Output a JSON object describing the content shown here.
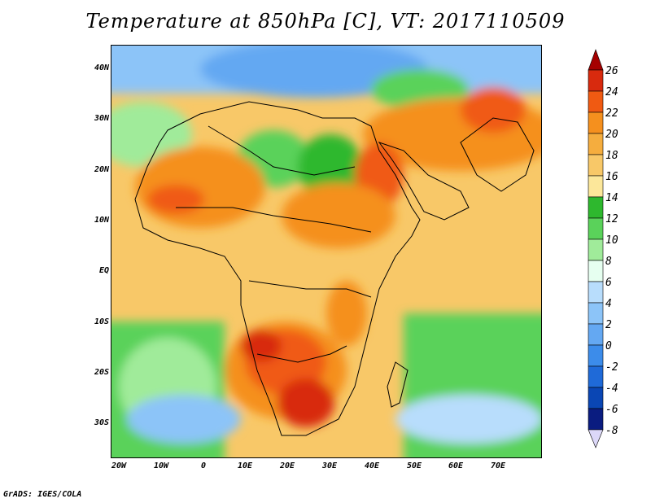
{
  "title": "Temperature at 850hPa [C], VT: 2017110509",
  "credit": "GrADS: IGES/COLA",
  "lat_labels": [
    "40N",
    "30N",
    "20N",
    "10N",
    "EQ",
    "10S",
    "20S",
    "30S"
  ],
  "lon_labels": [
    "20W",
    "10W",
    "0",
    "10E",
    "20E",
    "30E",
    "40E",
    "50E",
    "60E",
    "70E"
  ],
  "colorbar": {
    "labels": [
      "26",
      "24",
      "22",
      "20",
      "18",
      "16",
      "14",
      "12",
      "10",
      "8",
      "6",
      "4",
      "2",
      "0",
      "-2",
      "-4",
      "-6",
      "-8"
    ],
    "colors": [
      "#a50000",
      "#d82a0e",
      "#f05a12",
      "#f5901e",
      "#f5ad3e",
      "#f8c868",
      "#fce79a",
      "#2eb82e",
      "#5ad25a",
      "#a0eb9a",
      "#e6fff0",
      "#b8ddfc",
      "#8cc4f8",
      "#64a8f2",
      "#3c8cea",
      "#1f6ad8",
      "#0a46b4",
      "#0a1c80",
      "#dcd8f8"
    ]
  }
}
